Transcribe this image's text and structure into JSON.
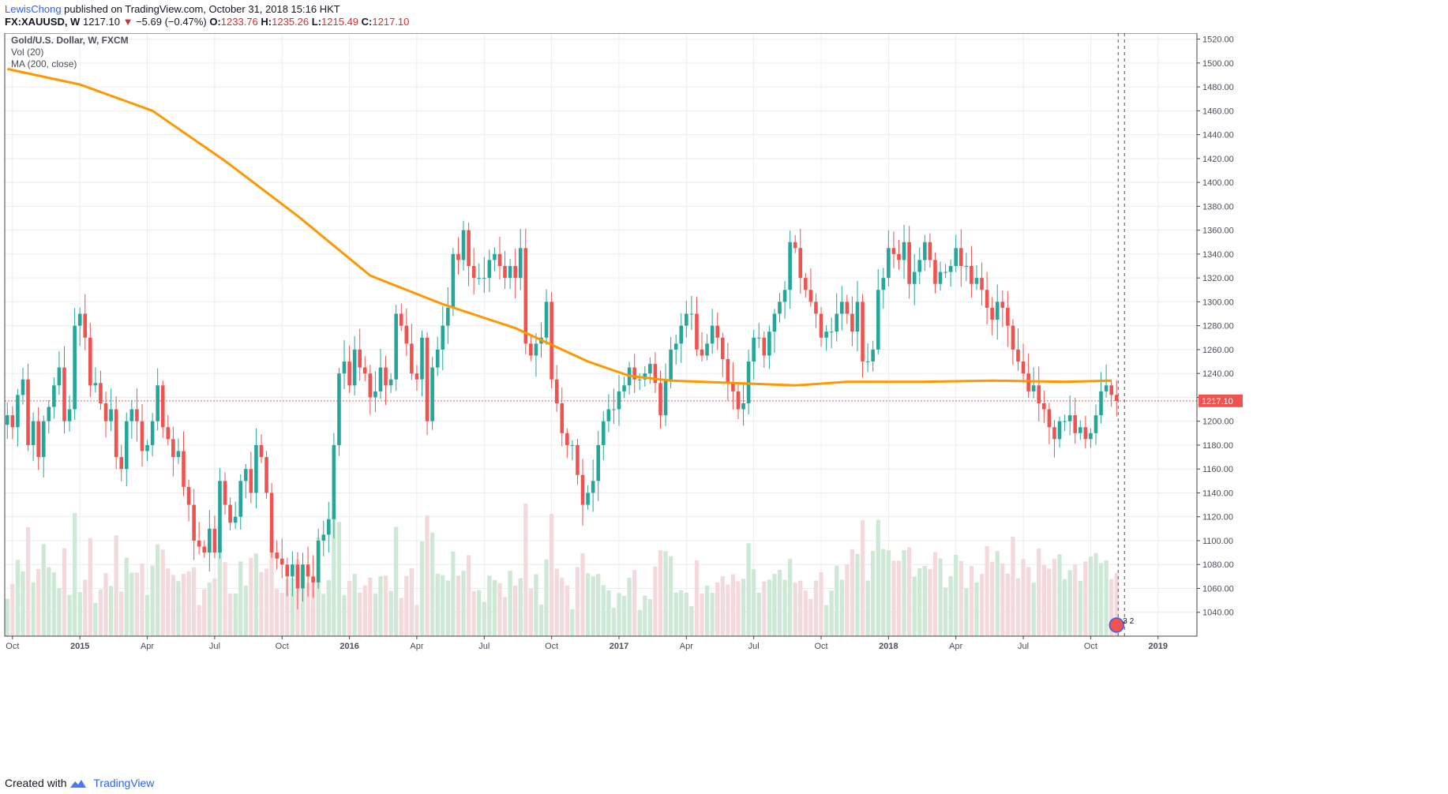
{
  "header": {
    "author": "LewisChong",
    "published": "published on TradingView.com, October 31, 2018 15:16 HKT",
    "symbol": "FX:XAUUSD, W",
    "last": "1217.10",
    "arrow": "▼",
    "change": "−5.69 (−0.47%)",
    "o_label": "O:",
    "o_value": "1233.76",
    "h_label": "H:",
    "h_value": "1235.26",
    "l_label": "L:",
    "l_value": "1215.49",
    "c_label": "C:",
    "c_value": "1217.10"
  },
  "legend": {
    "series": "Gold/U.S. Dollar, W, FXCM",
    "volume": "Vol (20)",
    "ma": "MA (200, close)"
  },
  "price_tag": "1217.10",
  "event_marker": {
    "icon": "us-flag-icon",
    "count": "3 2"
  },
  "footer": {
    "created": "Created with",
    "brand": "TradingView"
  },
  "colors": {
    "up": "#26a69a",
    "down": "#ef5350",
    "vol_up": "#cde8d4",
    "vol_down": "#f3d9db",
    "ma": "#ff9800",
    "price_line": "#ef5350",
    "grid": "#e9ecef"
  },
  "chart_data": {
    "type": "candlestick",
    "title": "Gold/U.S. Dollar, W, FXCM",
    "y_range": [
      1020,
      1525
    ],
    "y_ticks": [
      1040,
      1060,
      1080,
      1100,
      1120,
      1140,
      1160,
      1180,
      1200,
      1220,
      1240,
      1260,
      1280,
      1300,
      1320,
      1340,
      1360,
      1380,
      1400,
      1420,
      1440,
      1460,
      1480,
      1500,
      1520
    ],
    "y_tick_labels": [
      "1040.00",
      "1060.00",
      "1080.00",
      "1100.00",
      "1120.00",
      "1140.00",
      "1160.00",
      "1180.00",
      "1200.00",
      "1220.00",
      "1240.00",
      "1260.00",
      "1280.00",
      "1300.00",
      "1320.00",
      "1340.00",
      "1360.00",
      "1380.00",
      "1400.00",
      "1420.00",
      "1440.00",
      "1460.00",
      "1480.00",
      "1500.00",
      "1520.00"
    ],
    "x_ticks": [
      {
        "label": "Oct",
        "bar": 1
      },
      {
        "label": "2015",
        "bar": 14,
        "bold": true
      },
      {
        "label": "Apr",
        "bar": 27
      },
      {
        "label": "Jul",
        "bar": 40
      },
      {
        "label": "Oct",
        "bar": 53
      },
      {
        "label": "2016",
        "bar": 66,
        "bold": true
      },
      {
        "label": "Apr",
        "bar": 79
      },
      {
        "label": "Jul",
        "bar": 92
      },
      {
        "label": "Oct",
        "bar": 105
      },
      {
        "label": "2017",
        "bar": 118,
        "bold": true
      },
      {
        "label": "Apr",
        "bar": 131
      },
      {
        "label": "Jul",
        "bar": 144
      },
      {
        "label": "Oct",
        "bar": 157
      },
      {
        "label": "2018",
        "bar": 170,
        "bold": true
      },
      {
        "label": "Apr",
        "bar": 183
      },
      {
        "label": "Jul",
        "bar": 196
      },
      {
        "label": "Oct",
        "bar": 209
      },
      {
        "label": "2019",
        "bar": 222,
        "bold": true
      }
    ],
    "last_price": 1217.1,
    "bar_count_span": 230,
    "closes": [
      1205,
      1195,
      1222,
      1235,
      1180,
      1200,
      1170,
      1200,
      1212,
      1230,
      1245,
      1200,
      1210,
      1280,
      1290,
      1270,
      1230,
      1232,
      1215,
      1200,
      1210,
      1170,
      1160,
      1200,
      1210,
      1200,
      1175,
      1180,
      1200,
      1230,
      1195,
      1185,
      1170,
      1175,
      1145,
      1130,
      1100,
      1095,
      1090,
      1110,
      1090,
      1150,
      1130,
      1115,
      1120,
      1150,
      1160,
      1140,
      1180,
      1170,
      1140,
      1090,
      1085,
      1080,
      1070,
      1080,
      1060,
      1080,
      1070,
      1065,
      1100,
      1105,
      1118,
      1180,
      1240,
      1250,
      1230,
      1260,
      1245,
      1240,
      1220,
      1225,
      1245,
      1230,
      1235,
      1290,
      1280,
      1265,
      1240,
      1235,
      1270,
      1200,
      1245,
      1260,
      1280,
      1295,
      1340,
      1335,
      1360,
      1330,
      1320,
      1320,
      1320,
      1335,
      1340,
      1330,
      1320,
      1330,
      1320,
      1345,
      1265,
      1255,
      1265,
      1270,
      1300,
      1235,
      1215,
      1190,
      1180,
      1180,
      1155,
      1130,
      1140,
      1150,
      1180,
      1200,
      1210,
      1210,
      1225,
      1230,
      1245,
      1235,
      1235,
      1240,
      1248,
      1232,
      1205,
      1235,
      1260,
      1265,
      1280,
      1290,
      1290,
      1260,
      1255,
      1265,
      1280,
      1270,
      1252,
      1232,
      1225,
      1210,
      1215,
      1250,
      1270,
      1270,
      1255,
      1275,
      1290,
      1300,
      1310,
      1350,
      1345,
      1320,
      1310,
      1300,
      1290,
      1270,
      1275,
      1275,
      1290,
      1300,
      1290,
      1275,
      1300,
      1250,
      1250,
      1260,
      1310,
      1320,
      1345,
      1340,
      1335,
      1350,
      1315,
      1325,
      1335,
      1350,
      1335,
      1315,
      1325,
      1325,
      1330,
      1345,
      1330,
      1330,
      1315,
      1320,
      1310,
      1295,
      1285,
      1300,
      1295,
      1280,
      1260,
      1250,
      1240,
      1225,
      1230,
      1215,
      1210,
      1195,
      1185,
      1200,
      1200,
      1205,
      1190,
      1195,
      1185,
      1190,
      1205,
      1225,
      1230,
      1222,
      1217
    ],
    "ma200_points": [
      [
        0,
        1495
      ],
      [
        14,
        1482
      ],
      [
        28,
        1460
      ],
      [
        42,
        1418
      ],
      [
        56,
        1372
      ],
      [
        70,
        1322
      ],
      [
        84,
        1298
      ],
      [
        98,
        1278
      ],
      [
        112,
        1250
      ],
      [
        120,
        1238
      ],
      [
        128,
        1234
      ],
      [
        140,
        1232
      ],
      [
        152,
        1230
      ],
      [
        162,
        1233
      ],
      [
        176,
        1233
      ],
      [
        190,
        1234
      ],
      [
        204,
        1233
      ],
      [
        213,
        1234
      ]
    ]
  }
}
